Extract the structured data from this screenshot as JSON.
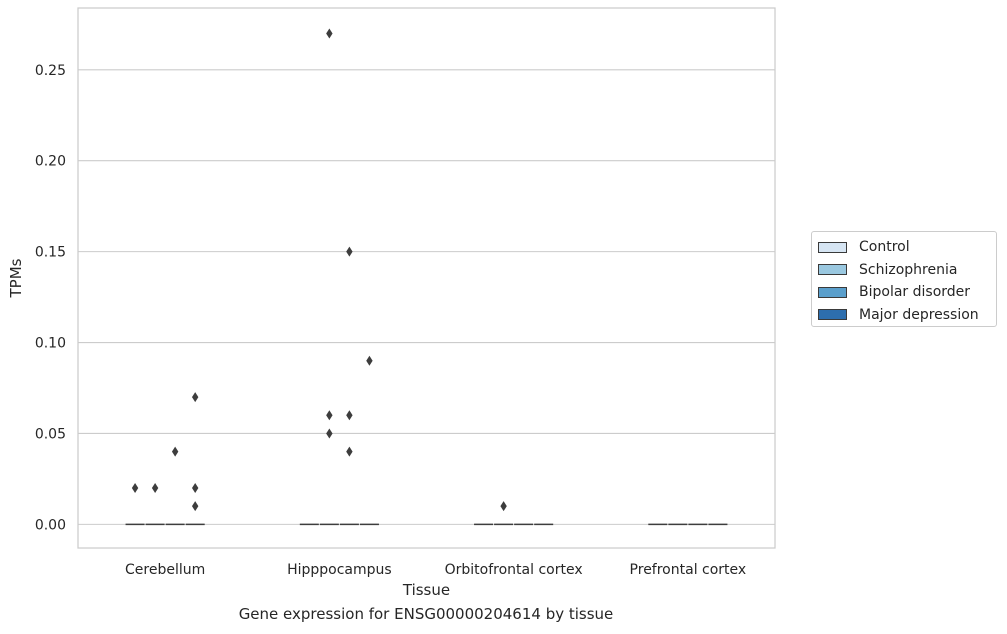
{
  "chart_data": {
    "type": "boxplot",
    "xlabel": "Tissue",
    "ylabel": "TPMs",
    "caption": "Gene expression for ENSG00000204614 by tissue",
    "ylim": [
      -0.013,
      0.284
    ],
    "yticks": [
      0.0,
      0.05,
      0.1,
      0.15,
      0.2,
      0.25
    ],
    "ytick_labels": [
      "0.00",
      "0.05",
      "0.10",
      "0.15",
      "0.20",
      "0.25"
    ],
    "grid": true,
    "legend_position": "right",
    "categories": [
      "Cerebellum",
      "Hipppocampus",
      "Orbitofrontal cortex",
      "Prefrontal cortex"
    ],
    "series": [
      {
        "name": "Control",
        "color": "#d6e5f3",
        "median": [
          0,
          0,
          0,
          0
        ],
        "outliers": [
          [
            0.02
          ],
          [],
          [],
          []
        ]
      },
      {
        "name": "Schizophrenia",
        "color": "#9ac8e0",
        "median": [
          0,
          0,
          0,
          0
        ],
        "outliers": [
          [
            0.02
          ],
          [
            0.27,
            0.06,
            0.05
          ],
          [
            0.01
          ],
          []
        ]
      },
      {
        "name": "Bipolar disorder",
        "color": "#5a9fcc",
        "median": [
          0,
          0,
          0,
          0
        ],
        "outliers": [
          [
            0.04
          ],
          [
            0.15,
            0.06,
            0.04
          ],
          [],
          []
        ]
      },
      {
        "name": "Major depression",
        "color": "#2d6eae",
        "median": [
          0,
          0,
          0,
          0
        ],
        "outliers": [
          [
            0.07,
            0.02,
            0.01
          ],
          [
            0.09
          ],
          [],
          []
        ]
      }
    ]
  }
}
